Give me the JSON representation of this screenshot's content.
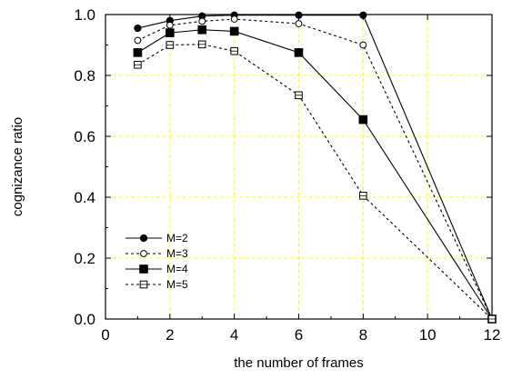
{
  "chart_data": {
    "type": "line",
    "title": "",
    "xlabel": "the number of frames",
    "ylabel": "cognizance ratio",
    "xlim": [
      0,
      12
    ],
    "ylim": [
      0,
      1.0
    ],
    "x_ticks": [
      0,
      2,
      4,
      6,
      8,
      10,
      12
    ],
    "x_tick_labels": [
      "0",
      "2",
      "4",
      "6",
      "8",
      "10",
      "12"
    ],
    "y_ticks": [
      0,
      0.2,
      0.4,
      0.6,
      0.8,
      1.0
    ],
    "y_tick_labels": [
      "0.0",
      "0.2",
      "0.4",
      "0.6",
      "0.8",
      "1.0"
    ],
    "grid": true,
    "grid_color": "#ffff00",
    "legend_position": "lower-left",
    "series": [
      {
        "name": "M=2",
        "line_style": "solid",
        "marker": "filled-circle",
        "x": [
          1,
          2,
          3,
          4,
          6,
          8,
          12
        ],
        "y": [
          0.955,
          0.98,
          0.995,
          0.998,
          0.998,
          0.998,
          0.0
        ]
      },
      {
        "name": "M=3",
        "line_style": "dotted",
        "marker": "open-circle",
        "x": [
          1,
          2,
          3,
          4,
          6,
          8,
          12
        ],
        "y": [
          0.915,
          0.965,
          0.978,
          0.985,
          0.97,
          0.9,
          0.0
        ]
      },
      {
        "name": "M=4",
        "line_style": "solid",
        "marker": "filled-square",
        "x": [
          1,
          2,
          3,
          4,
          6,
          8,
          12
        ],
        "y": [
          0.875,
          0.94,
          0.95,
          0.945,
          0.875,
          0.655,
          0.0
        ]
      },
      {
        "name": "M=5",
        "line_style": "dotted",
        "marker": "open-square",
        "x": [
          1,
          2,
          3,
          4,
          6,
          8,
          12
        ],
        "y": [
          0.835,
          0.9,
          0.902,
          0.88,
          0.735,
          0.405,
          0.0
        ]
      }
    ]
  }
}
